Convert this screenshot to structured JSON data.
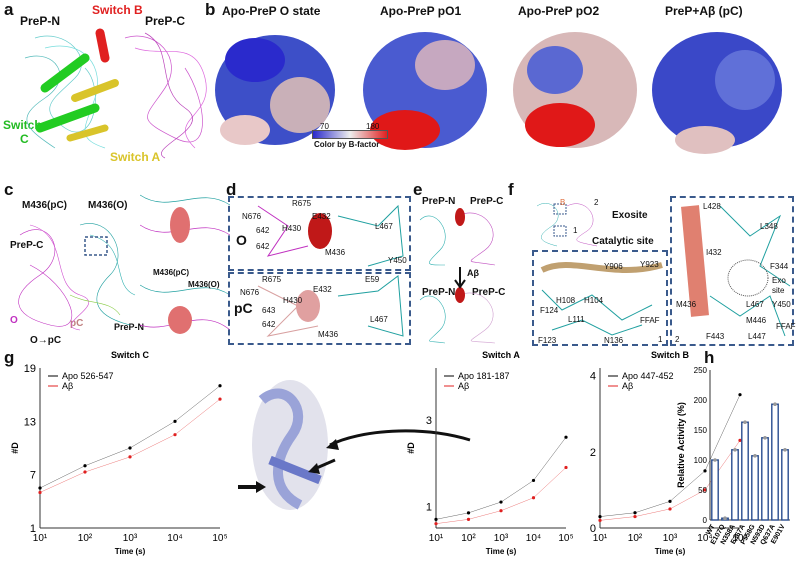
{
  "panels": {
    "a": {
      "letter": "a",
      "prep_n": "PreP-N",
      "prep_c": "PreP-C",
      "switch_b": "Switch B",
      "switch_c": "Switch\nC",
      "switch_c1": "Switch",
      "switch_c2": "C",
      "switch_a": "Switch A"
    },
    "b": {
      "letter": "b",
      "titles": [
        "Apo-PreP O state",
        "Apo-PreP pO1",
        "Apo-PreP pO2",
        "PreP+Aβ (pC)"
      ],
      "colorbar": {
        "min": "70",
        "max": "180",
        "label": "Color by B-factor"
      }
    },
    "c": {
      "letter": "c",
      "m_pc": "M436(pC)",
      "m_o": "M436(O)",
      "prep_c": "PreP-C",
      "prep_n": "PreP-N",
      "o": "O",
      "pc": "pC",
      "o_to_pc": "O→pC",
      "m_pc2": "M436(pC)",
      "m_o2": "M436(O)"
    },
    "d": {
      "letter": "d",
      "o": "O",
      "pc": "pC",
      "top": [
        "R675",
        "N676",
        "642",
        "H430",
        "642",
        "E432",
        "L467",
        "M436",
        "Y450"
      ],
      "bottom": [
        "R675",
        "E432",
        "E59",
        "N676",
        "H430",
        "643",
        "642",
        "L467",
        "M436"
      ]
    },
    "e": {
      "letter": "e",
      "prep_n": "PreP-N",
      "prep_c": "PreP-C",
      "abeta": "Aβ",
      "prep_n2": "PreP-N",
      "prep_c2": "PreP-C"
    },
    "f": {
      "letter": "f",
      "exosite": "Exosite",
      "catalytic": "Catalytic site",
      "b": "B",
      "n1": "1",
      "n2": "2",
      "left": [
        "Y906",
        "Y923",
        "H108",
        "H104",
        "F124",
        "L111",
        "FFAF",
        "F123",
        "N136",
        "1"
      ],
      "right": [
        "L428",
        "L348",
        "I432",
        "F344",
        "Exo",
        "site",
        "M436",
        "L467",
        "Y450",
        "M446",
        "FFAF",
        "F443",
        "L447",
        "2"
      ]
    },
    "g": {
      "letter": "g"
    },
    "h": {
      "letter": "h"
    }
  },
  "chart_data": [
    {
      "type": "line",
      "title": "Switch C",
      "xlabel": "Time (s)",
      "ylabel": "#D",
      "xscale": "log",
      "xlim": [
        10,
        100000
      ],
      "ylim": [
        1,
        19
      ],
      "yticks": [
        1,
        7,
        13,
        19
      ],
      "xticks": [
        "10¹",
        "10²",
        "10³",
        "10⁴",
        "10⁵"
      ],
      "x": [
        10,
        100,
        1000,
        10000,
        100000
      ],
      "series": [
        {
          "name": "Apo 526-547",
          "color": "#000000",
          "values": [
            5.5,
            8.0,
            10.0,
            13.0,
            17.0
          ]
        },
        {
          "name": "Aβ",
          "color": "#e02020",
          "values": [
            5.0,
            7.3,
            9.0,
            11.5,
            15.5
          ]
        }
      ]
    },
    {
      "type": "line",
      "title": "Switch A",
      "xlabel": "Time (s)",
      "ylabel": "#D",
      "xscale": "log",
      "xlim": [
        10,
        100000
      ],
      "ylim": [
        0.5,
        4.2
      ],
      "yticks": [
        1,
        3
      ],
      "xticks": [
        "10¹",
        "10²",
        "10³",
        "10⁴",
        "10⁵"
      ],
      "x": [
        10,
        100,
        1000,
        10000,
        100000
      ],
      "series": [
        {
          "name": "Apo 181-187",
          "color": "#000000",
          "values": [
            0.7,
            0.85,
            1.1,
            1.6,
            2.6
          ]
        },
        {
          "name": "Aβ",
          "color": "#e02020",
          "values": [
            0.6,
            0.7,
            0.9,
            1.2,
            1.9
          ]
        }
      ]
    },
    {
      "type": "line",
      "title": "Switch B",
      "xlabel": "Time (s)",
      "ylabel": "",
      "xscale": "log",
      "xlim": [
        10,
        100000
      ],
      "ylim": [
        0,
        4.2
      ],
      "yticks": [
        0,
        2,
        4
      ],
      "xticks": [
        "10¹",
        "10²",
        "10³",
        "10⁴",
        "10⁵"
      ],
      "x": [
        10,
        100,
        1000,
        10000,
        100000
      ],
      "series": [
        {
          "name": "Apo 447-452",
          "color": "#000000",
          "values": [
            0.3,
            0.4,
            0.7,
            1.5,
            3.5
          ]
        },
        {
          "name": "Aβ",
          "color": "#e02020",
          "values": [
            0.2,
            0.3,
            0.5,
            1.0,
            2.3
          ]
        }
      ]
    },
    {
      "type": "bar",
      "ylabel": "Relative Activity (%)",
      "ylim": [
        0,
        250
      ],
      "yticks": [
        0,
        50,
        100,
        150,
        200,
        250
      ],
      "categories": [
        "WT",
        "E107Q",
        "N358A",
        "E367A",
        "P558G",
        "N593D",
        "Q637A",
        "E901V"
      ],
      "values": [
        100,
        3,
        117,
        163,
        107,
        137,
        193,
        117
      ],
      "colors": {
        "bar_edge": "#2a4d8f",
        "highlight": "#e8a33a",
        "dots": "#999999"
      }
    }
  ]
}
